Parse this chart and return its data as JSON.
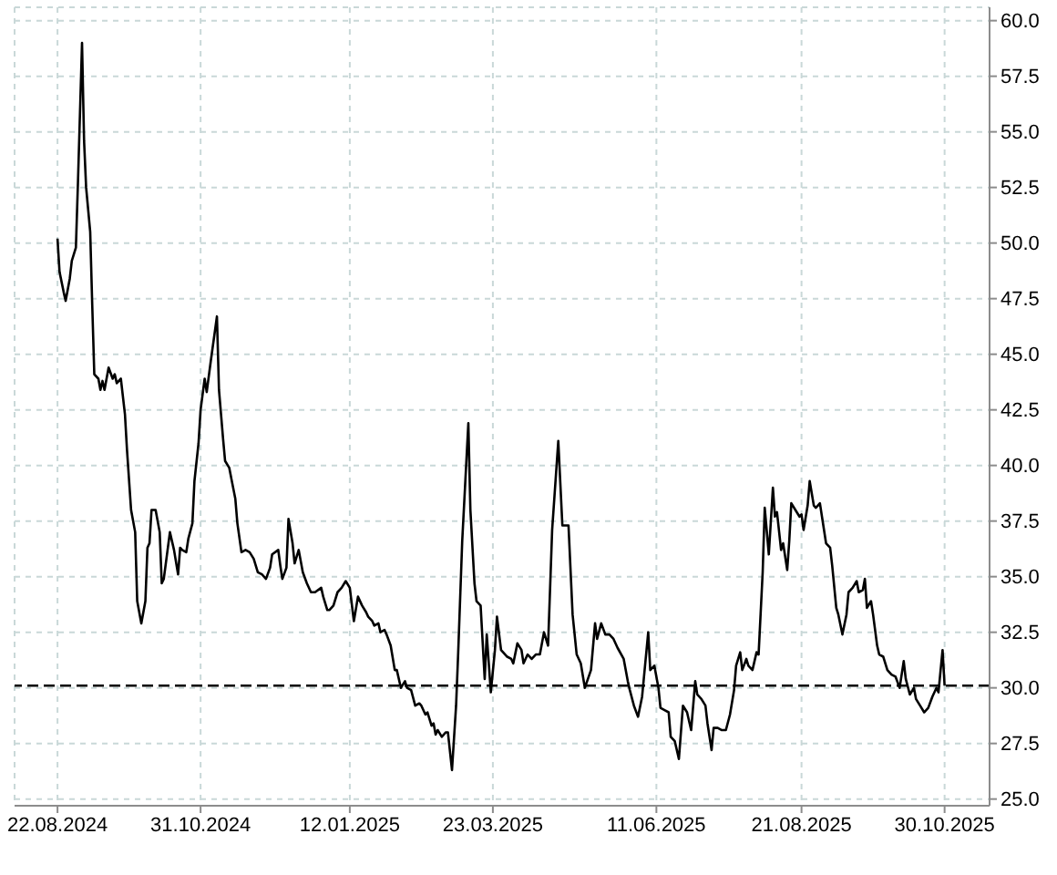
{
  "chart_data": {
    "type": "line",
    "color": "#000000",
    "x": [
      "2024-08-22",
      "2024-08-23",
      "2024-08-25",
      "2024-08-26",
      "2024-08-28",
      "2024-08-29",
      "2024-08-31",
      "2024-09-01",
      "2024-09-03",
      "2024-09-04",
      "2024-09-05",
      "2024-09-07",
      "2024-09-08",
      "2024-09-09",
      "2024-09-11",
      "2024-09-12",
      "2024-09-13",
      "2024-09-14",
      "2024-09-16",
      "2024-09-18",
      "2024-09-19",
      "2024-09-20",
      "2024-09-22",
      "2024-09-24",
      "2024-09-25",
      "2024-09-27",
      "2024-09-29",
      "2024-09-30",
      "2024-10-02",
      "2024-10-04",
      "2024-10-05",
      "2024-10-06",
      "2024-10-07",
      "2024-10-09",
      "2024-10-11",
      "2024-10-12",
      "2024-10-13",
      "2024-10-15",
      "2024-10-16",
      "2024-10-18",
      "2024-10-20",
      "2024-10-21",
      "2024-10-22",
      "2024-10-24",
      "2024-10-25",
      "2024-10-27",
      "2024-10-28",
      "2024-10-30",
      "2024-10-31",
      "2024-11-02",
      "2024-11-03",
      "2024-11-05",
      "2024-11-08",
      "2024-11-09",
      "2024-11-11",
      "2024-11-12",
      "2024-11-14",
      "2024-11-17",
      "2024-11-18",
      "2024-11-20",
      "2024-11-22",
      "2024-11-24",
      "2024-11-26",
      "2024-11-28",
      "2024-11-30",
      "2024-12-02",
      "2024-12-04",
      "2024-12-05",
      "2024-12-08",
      "2024-12-09",
      "2024-12-10",
      "2024-12-12",
      "2024-12-13",
      "2024-12-15",
      "2024-12-16",
      "2024-12-18",
      "2024-12-20",
      "2024-12-22",
      "2024-12-24",
      "2024-12-26",
      "2024-12-29",
      "2024-12-30",
      "2025-01-01",
      "2025-01-02",
      "2025-01-04",
      "2025-01-06",
      "2025-01-08",
      "2025-01-10",
      "2025-01-12",
      "2025-01-14",
      "2025-01-16",
      "2025-01-18",
      "2025-01-20",
      "2025-01-21",
      "2025-01-23",
      "2025-01-24",
      "2025-01-26",
      "2025-01-27",
      "2025-01-29",
      "2025-01-30",
      "2025-02-01",
      "2025-02-03",
      "2025-02-04",
      "2025-02-06",
      "2025-02-08",
      "2025-02-09",
      "2025-02-11",
      "2025-02-13",
      "2025-02-15",
      "2025-02-16",
      "2025-02-18",
      "2025-02-19",
      "2025-02-21",
      "2025-02-22",
      "2025-02-23",
      "2025-02-24",
      "2025-02-26",
      "2025-02-28",
      "2025-03-01",
      "2025-03-03",
      "2025-03-05",
      "2025-03-06",
      "2025-03-08",
      "2025-03-11",
      "2025-03-12",
      "2025-03-14",
      "2025-03-15",
      "2025-03-17",
      "2025-03-19",
      "2025-03-20",
      "2025-03-22",
      "2025-03-24",
      "2025-03-25",
      "2025-03-27",
      "2025-03-29",
      "2025-03-30",
      "2025-04-01",
      "2025-04-02",
      "2025-04-04",
      "2025-04-06",
      "2025-04-07",
      "2025-04-09",
      "2025-04-11",
      "2025-04-13",
      "2025-04-15",
      "2025-04-17",
      "2025-04-19",
      "2025-04-21",
      "2025-04-24",
      "2025-04-26",
      "2025-04-29",
      "2025-05-01",
      "2025-05-03",
      "2025-05-05",
      "2025-05-07",
      "2025-05-10",
      "2025-05-12",
      "2025-05-13",
      "2025-05-15",
      "2025-05-17",
      "2025-05-19",
      "2025-05-21",
      "2025-05-23",
      "2025-05-26",
      "2025-05-28",
      "2025-05-29",
      "2025-05-31",
      "2025-06-02",
      "2025-06-04",
      "2025-06-07",
      "2025-06-08",
      "2025-06-10",
      "2025-06-12",
      "2025-06-13",
      "2025-06-15",
      "2025-06-17",
      "2025-06-18",
      "2025-06-20",
      "2025-06-22",
      "2025-06-24",
      "2025-06-26",
      "2025-06-28",
      "2025-06-30",
      "2025-07-01",
      "2025-07-03",
      "2025-07-05",
      "2025-07-06",
      "2025-07-08",
      "2025-07-09",
      "2025-07-11",
      "2025-07-13",
      "2025-07-15",
      "2025-07-17",
      "2025-07-19",
      "2025-07-20",
      "2025-07-22",
      "2025-07-23",
      "2025-07-25",
      "2025-07-26",
      "2025-07-28",
      "2025-07-30",
      "2025-07-31",
      "2025-08-02",
      "2025-08-03",
      "2025-08-05",
      "2025-08-07",
      "2025-08-08",
      "2025-08-09",
      "2025-08-11",
      "2025-08-12",
      "2025-08-14",
      "2025-08-15",
      "2025-08-16",
      "2025-08-18",
      "2025-08-20",
      "2025-08-21",
      "2025-08-22",
      "2025-08-24",
      "2025-08-25",
      "2025-08-27",
      "2025-08-28",
      "2025-08-30",
      "2025-08-31",
      "2025-09-02",
      "2025-09-04",
      "2025-09-05",
      "2025-09-07",
      "2025-09-08",
      "2025-09-10",
      "2025-09-12",
      "2025-09-13",
      "2025-09-15",
      "2025-09-17",
      "2025-09-18",
      "2025-09-20",
      "2025-09-21",
      "2025-09-22",
      "2025-09-24",
      "2025-09-25",
      "2025-09-27",
      "2025-09-28",
      "2025-09-30",
      "2025-10-02",
      "2025-10-04",
      "2025-10-06",
      "2025-10-08",
      "2025-10-10",
      "2025-10-11",
      "2025-10-13",
      "2025-10-15",
      "2025-10-16",
      "2025-10-18",
      "2025-10-20",
      "2025-10-22",
      "2025-10-24",
      "2025-10-26",
      "2025-10-27",
      "2025-10-29",
      "2025-10-30"
    ],
    "values": [
      50.2,
      48.7,
      47.8,
      47.4,
      48.4,
      49.2,
      49.8,
      52.7,
      59.0,
      54.6,
      52.5,
      50.5,
      47.2,
      44.1,
      43.9,
      43.4,
      43.8,
      43.4,
      44.4,
      43.9,
      44.1,
      43.7,
      43.9,
      42.3,
      40.7,
      38.0,
      37.0,
      33.9,
      32.9,
      33.9,
      36.3,
      36.5,
      38.0,
      38.0,
      37.0,
      34.7,
      34.9,
      36.3,
      37.0,
      36.2,
      35.1,
      36.3,
      36.2,
      36.1,
      36.7,
      37.4,
      39.3,
      41.0,
      42.5,
      43.9,
      43.3,
      44.7,
      46.7,
      43.4,
      41.2,
      40.2,
      39.9,
      38.5,
      37.4,
      36.1,
      36.2,
      36.1,
      35.8,
      35.2,
      35.1,
      34.9,
      35.4,
      36.0,
      36.2,
      35.5,
      34.9,
      35.4,
      37.6,
      36.5,
      35.6,
      36.2,
      35.2,
      34.7,
      34.3,
      34.3,
      34.5,
      34.1,
      33.5,
      33.5,
      33.7,
      34.3,
      34.5,
      34.8,
      34.5,
      33.0,
      34.1,
      33.7,
      33.4,
      33.2,
      33.0,
      32.8,
      32.9,
      32.5,
      32.6,
      32.4,
      31.9,
      30.8,
      30.8,
      30.0,
      30.3,
      30.0,
      29.9,
      29.2,
      29.3,
      29.2,
      28.8,
      28.9,
      28.3,
      28.4,
      27.9,
      28.1,
      27.8,
      28.0,
      28.0,
      26.3,
      29.2,
      31.5,
      36.6,
      41.9,
      38.0,
      34.7,
      33.9,
      33.7,
      30.4,
      32.4,
      29.8,
      31.7,
      33.2,
      31.7,
      31.5,
      31.4,
      31.3,
      31.1,
      32.0,
      31.7,
      31.1,
      31.5,
      31.3,
      31.5,
      31.5,
      32.5,
      31.9,
      37.1,
      41.1,
      37.3,
      37.3,
      33.3,
      31.5,
      31.1,
      30.0,
      30.8,
      32.9,
      32.2,
      32.9,
      32.4,
      32.4,
      32.2,
      31.8,
      31.3,
      30.3,
      29.9,
      29.2,
      28.7,
      29.6,
      32.5,
      30.8,
      31.0,
      30.0,
      29.1,
      29.0,
      28.9,
      27.8,
      27.6,
      26.8,
      29.2,
      28.9,
      28.1,
      30.3,
      29.7,
      29.5,
      29.2,
      28.4,
      27.2,
      28.2,
      28.2,
      28.1,
      28.1,
      28.8,
      29.9,
      31.0,
      31.6,
      30.8,
      31.3,
      31.0,
      30.8,
      31.6,
      31.5,
      35.2,
      38.1,
      36.0,
      39.0,
      37.7,
      37.9,
      36.2,
      36.5,
      35.3,
      36.6,
      38.3,
      38.0,
      37.7,
      37.8,
      37.1,
      38.2,
      39.3,
      38.2,
      38.1,
      38.3,
      37.7,
      36.5,
      36.3,
      35.5,
      33.6,
      33.3,
      32.4,
      33.3,
      34.3,
      34.5,
      34.8,
      34.3,
      34.4,
      34.9,
      33.6,
      33.9,
      33.3,
      31.9,
      31.5,
      31.4,
      30.8,
      30.6,
      30.5,
      30.0,
      31.2,
      30.4,
      29.7,
      30.0,
      29.5,
      29.2,
      28.9,
      29.1,
      29.6,
      30.0,
      29.8,
      31.7,
      30.1
    ],
    "xlim": [
      "2024-08-01",
      "2025-11-21"
    ],
    "xticks": [
      {
        "value": "2024-08-22",
        "label": "22.08.2024"
      },
      {
        "value": "2024-10-31",
        "label": "31.10.2024"
      },
      {
        "value": "2025-01-12",
        "label": "12.01.2025"
      },
      {
        "value": "2025-03-23",
        "label": "23.03.2025"
      },
      {
        "value": "2025-06-11",
        "label": "11.06.2025"
      },
      {
        "value": "2025-08-21",
        "label": "21.08.2025"
      },
      {
        "value": "2025-10-30",
        "label": "30.10.2025"
      }
    ],
    "ylim": [
      24.7,
      60.6
    ],
    "yticks": [
      {
        "value": 25,
        "label": "25.0"
      },
      27.5,
      {
        "value": 30,
        "label": "30.0"
      },
      32.5,
      {
        "value": 35,
        "label": "35.0"
      },
      37.5,
      {
        "value": 40,
        "label": "40.0"
      },
      42.5,
      {
        "value": 45,
        "label": "45.0"
      },
      47.5,
      {
        "value": 50,
        "label": "50.0"
      },
      52.5,
      {
        "value": 55,
        "label": "55.0"
      },
      57.5,
      {
        "value": 60,
        "label": "60.0"
      }
    ],
    "grid": true,
    "ref_lines": [
      {
        "axis": "y",
        "value": 30.1,
        "color": "#000000",
        "line_style": "dashed"
      }
    ]
  }
}
